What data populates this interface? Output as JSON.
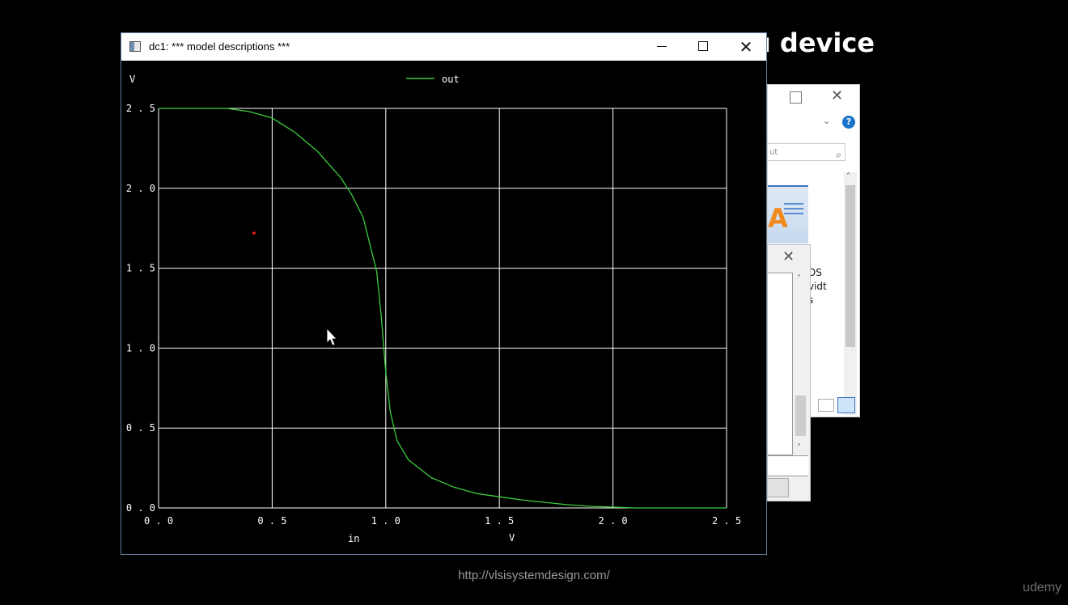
{
  "slide": {
    "title_fragment": "u device",
    "footer_url": "http://vlsisystemdesign.com/",
    "brand": "udemy"
  },
  "background_window": {
    "search_fragment": "ut",
    "side_text": [
      "DS",
      "vidt",
      "s"
    ]
  },
  "window": {
    "title": "dc1: *** model descriptions ***",
    "controls": [
      "minimize",
      "maximize",
      "close"
    ]
  },
  "chart_data": {
    "type": "line",
    "title": "",
    "xlabel": "in",
    "xunit": "V",
    "ylabel": "",
    "yunit": "V",
    "xlim": [
      0.0,
      2.5
    ],
    "ylim": [
      0.0,
      2.5
    ],
    "x_ticks": [
      "0.0",
      "0.5",
      "1.0",
      "1.5",
      "2.0",
      "2.5"
    ],
    "y_ticks": [
      "0.0",
      "0.5",
      "1.0",
      "1.5",
      "2.0",
      "2.5"
    ],
    "grid": true,
    "legend_position": "top-center",
    "colors": {
      "out": "#3dcc3d",
      "grid": "#ffffff",
      "marker": "#ff2020"
    },
    "series": [
      {
        "name": "out",
        "x": [
          0.0,
          0.2,
          0.3,
          0.4,
          0.5,
          0.6,
          0.7,
          0.8,
          0.85,
          0.9,
          0.93,
          0.96,
          0.98,
          1.0,
          1.02,
          1.05,
          1.1,
          1.2,
          1.3,
          1.4,
          1.5,
          1.6,
          1.7,
          1.8,
          1.9,
          2.0,
          2.1,
          2.5
        ],
        "y": [
          2.5,
          2.5,
          2.5,
          2.48,
          2.44,
          2.35,
          2.23,
          2.07,
          1.96,
          1.82,
          1.65,
          1.48,
          1.2,
          0.85,
          0.6,
          0.42,
          0.3,
          0.19,
          0.13,
          0.09,
          0.07,
          0.05,
          0.035,
          0.02,
          0.01,
          0.005,
          0.0,
          0.0
        ]
      }
    ],
    "marker_point": {
      "x": 0.42,
      "y": 1.72
    }
  }
}
